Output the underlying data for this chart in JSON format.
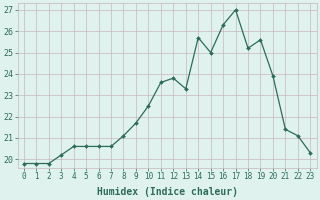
{
  "x": [
    0,
    1,
    2,
    3,
    4,
    5,
    6,
    7,
    8,
    9,
    10,
    11,
    12,
    13,
    14,
    15,
    16,
    17,
    18,
    19,
    20,
    21,
    22,
    23
  ],
  "y": [
    19.8,
    19.8,
    19.8,
    20.2,
    20.6,
    20.6,
    20.6,
    20.6,
    21.1,
    21.7,
    22.5,
    23.6,
    23.8,
    23.3,
    25.7,
    25.0,
    26.3,
    27.0,
    25.2,
    25.6,
    23.9,
    21.4,
    21.1,
    20.3
  ],
  "xlabel": "Humidex (Indice chaleur)",
  "ylim": [
    19.6,
    27.3
  ],
  "xlim": [
    -0.5,
    23.5
  ],
  "yticks": [
    20,
    21,
    22,
    23,
    24,
    25,
    26,
    27
  ],
  "xticks": [
    0,
    1,
    2,
    3,
    4,
    5,
    6,
    7,
    8,
    9,
    10,
    11,
    12,
    13,
    14,
    15,
    16,
    17,
    18,
    19,
    20,
    21,
    22,
    23
  ],
  "xtick_labels": [
    "0",
    "1",
    "2",
    "3",
    "4",
    "5",
    "6",
    "7",
    "8",
    "9",
    "10",
    "11",
    "12",
    "13",
    "14",
    "15",
    "16",
    "17",
    "18",
    "19",
    "20",
    "21",
    "22",
    "23"
  ],
  "line_color": "#2d6b5a",
  "marker_color": "#2d6b5a",
  "bg_color": "#dff2ee",
  "grid_color_h": "#c8b8b8",
  "grid_color_v": "#c8b8b8",
  "font_color": "#2d6b5a",
  "xlabel_fontsize": 7.0,
  "tick_fontsize": 5.5,
  "ytick_fontsize": 6.0
}
